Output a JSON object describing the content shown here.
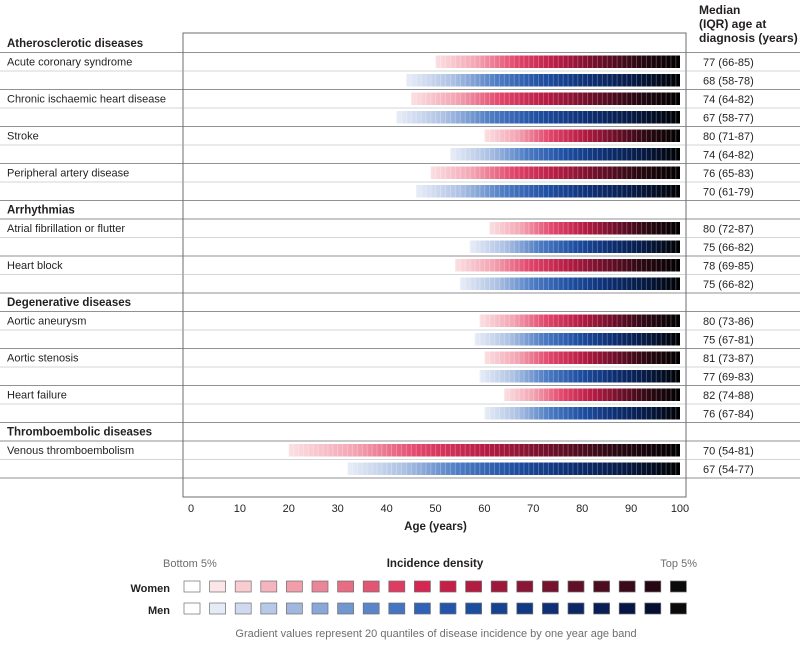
{
  "chart_data": {
    "type": "heatmap",
    "right_header": [
      "Median",
      "(IQR) age at",
      "diagnosis (years)"
    ],
    "xlabel": "Age (years)",
    "xlim": [
      0,
      100
    ],
    "xticks": [
      0,
      10,
      20,
      30,
      40,
      50,
      60,
      70,
      80,
      90,
      100
    ],
    "groups": [
      {
        "name": "Atherosclerotic diseases",
        "diseases": [
          {
            "name": "Acute coronary syndrome",
            "women": {
              "label": "77 (66-85)",
              "median": 77,
              "q1": 66,
              "q3": 85,
              "start": 50
            },
            "men": {
              "label": "68 (58-78)",
              "median": 68,
              "q1": 58,
              "q3": 78,
              "start": 44
            }
          },
          {
            "name": "Chronic ischaemic heart disease",
            "women": {
              "label": "74 (64-82)",
              "median": 74,
              "q1": 64,
              "q3": 82,
              "start": 45
            },
            "men": {
              "label": "67 (58-77)",
              "median": 67,
              "q1": 58,
              "q3": 77,
              "start": 42
            }
          }
        ]
      },
      {
        "name": "",
        "diseases": [
          {
            "name": "Stroke",
            "women": {
              "label": "80 (71-87)",
              "median": 80,
              "q1": 71,
              "q3": 87,
              "start": 60
            },
            "men": {
              "label": "74 (64-82)",
              "median": 74,
              "q1": 64,
              "q3": 82,
              "start": 53
            }
          },
          {
            "name": "Peripheral artery disease",
            "women": {
              "label": "76 (65-83)",
              "median": 76,
              "q1": 65,
              "q3": 83,
              "start": 49
            },
            "men": {
              "label": "70 (61-79)",
              "median": 70,
              "q1": 61,
              "q3": 79,
              "start": 46
            }
          }
        ]
      },
      {
        "name": "Arrhythmias",
        "diseases": [
          {
            "name": "Atrial fibrillation or flutter",
            "women": {
              "label": "80 (72-87)",
              "median": 80,
              "q1": 72,
              "q3": 87,
              "start": 61
            },
            "men": {
              "label": "75 (66-82)",
              "median": 75,
              "q1": 66,
              "q3": 82,
              "start": 57
            }
          },
          {
            "name": "Heart block",
            "women": {
              "label": "78 (69-85)",
              "median": 78,
              "q1": 69,
              "q3": 85,
              "start": 54
            },
            "men": {
              "label": "75 (66-82)",
              "median": 75,
              "q1": 66,
              "q3": 82,
              "start": 55
            }
          }
        ]
      },
      {
        "name": "Degenerative diseases",
        "diseases": [
          {
            "name": "Aortic aneurysm",
            "women": {
              "label": "80 (73-86)",
              "median": 80,
              "q1": 73,
              "q3": 86,
              "start": 59
            },
            "men": {
              "label": "75 (67-81)",
              "median": 75,
              "q1": 67,
              "q3": 81,
              "start": 58
            }
          },
          {
            "name": "Aortic stenosis",
            "women": {
              "label": "81 (73-87)",
              "median": 81,
              "q1": 73,
              "q3": 87,
              "start": 60
            },
            "men": {
              "label": "77 (69-83)",
              "median": 77,
              "q1": 69,
              "q3": 83,
              "start": 59
            }
          },
          {
            "name": "Heart failure",
            "women": {
              "label": "82 (74-88)",
              "median": 82,
              "q1": 74,
              "q3": 88,
              "start": 64
            },
            "men": {
              "label": "76 (67-84)",
              "median": 76,
              "q1": 67,
              "q3": 84,
              "start": 60
            }
          }
        ]
      },
      {
        "name": "Thromboembolic diseases",
        "diseases": [
          {
            "name": "Venous thromboembolism",
            "women": {
              "label": "70 (54-81)",
              "median": 70,
              "q1": 54,
              "q3": 81,
              "start": 20
            },
            "men": {
              "label": "67 (54-77)",
              "median": 67,
              "q1": 54,
              "q3": 77,
              "start": 32
            }
          }
        ]
      }
    ],
    "legend": {
      "left_label": "Bottom 5%",
      "title": "Incidence density",
      "right_label": "Top 5%",
      "women_label": "Women",
      "men_label": "Men",
      "quantiles": 20,
      "caption": "Gradient values represent 20 quantiles of disease incidence by one year age band"
    },
    "colors": {
      "women": [
        "#ffffff",
        "#fde6e8",
        "#f9ccd2",
        "#f5b4bf",
        "#f19daa",
        "#ec8598",
        "#e76d85",
        "#e25573",
        "#dd3d62",
        "#d62652",
        "#c51f48",
        "#b21b42",
        "#9e183b",
        "#8a1535",
        "#76122e",
        "#620f28",
        "#4e0c21",
        "#3a091a",
        "#270613",
        "#0a0a0a"
      ],
      "men": [
        "#ffffff",
        "#e6ecf7",
        "#cfdaf0",
        "#b7c9e8",
        "#a0b8e0",
        "#89a7d8",
        "#7296d0",
        "#5b85c8",
        "#4574c0",
        "#3063b7",
        "#2455aa",
        "#1b4f9e",
        "#164391",
        "#123984",
        "#0f3076",
        "#0c2766",
        "#091e55",
        "#061644",
        "#040e33",
        "#0a0a0a"
      ],
      "women_gradient": [
        "#fbe0e3",
        "#f3a5b3",
        "#e2456a",
        "#b71c44",
        "#6e0f2a",
        "#2a0812",
        "#000000"
      ],
      "men_gradient": [
        "#e8edf7",
        "#aec2e4",
        "#4d7cc4",
        "#1e4fa2",
        "#0e2f74",
        "#061a44",
        "#000000"
      ]
    }
  }
}
